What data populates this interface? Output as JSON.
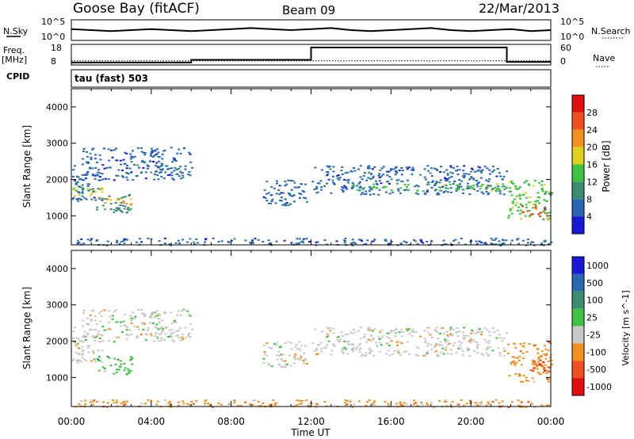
{
  "header": {
    "station": "Goose Bay (fitACF)",
    "beam": "Beam 09",
    "date": "22/Mar/2013"
  },
  "side_labels": {
    "noise_sky": "N.Sky",
    "noise_search": "N.Search",
    "freq_line1": "Freq.",
    "freq_line2": "[MHz]",
    "nave": "Nave",
    "cpid": "CPID",
    "cpid_value": "tau (fast) 503"
  },
  "chart_data": [
    {
      "type": "line",
      "name": "noise-panel",
      "left_ticks": [
        "10^5",
        "10^0"
      ],
      "right_ticks": [
        "10^5",
        "10^0"
      ],
      "x_range": [
        0,
        24
      ],
      "series": [
        {
          "name": "N.Sky",
          "x": [
            0,
            1,
            2,
            3,
            4,
            5,
            6,
            7,
            8,
            9,
            10,
            11,
            12,
            13,
            14,
            15,
            16,
            17,
            18,
            19,
            20,
            21,
            22,
            23,
            24
          ],
          "y": [
            0.45,
            0.5,
            0.55,
            0.5,
            0.45,
            0.5,
            0.55,
            0.5,
            0.45,
            0.4,
            0.45,
            0.5,
            0.45,
            0.4,
            0.5,
            0.55,
            0.5,
            0.45,
            0.4,
            0.5,
            0.55,
            0.5,
            0.45,
            0.55,
            0.5
          ]
        }
      ]
    },
    {
      "type": "line",
      "name": "frequency-panel",
      "left_ticks": [
        "18",
        "8"
      ],
      "right_ticks": [
        "60",
        "0"
      ],
      "x_range": [
        0,
        24
      ],
      "series": [
        {
          "name": "Freq.",
          "x": [
            0,
            6,
            6,
            12,
            12,
            21.8,
            21.8,
            24
          ],
          "y": [
            9.2,
            9.2,
            10.5,
            10.5,
            16.5,
            16.5,
            9.5,
            9.5
          ]
        },
        {
          "name": "Nave",
          "x": [
            0,
            24
          ],
          "y": [
            10,
            10
          ]
        }
      ]
    },
    {
      "type": "heatmap",
      "name": "power-panel",
      "ylabel": "Slant Range [km]",
      "x_range": [
        0,
        24
      ],
      "y_range": [
        200,
        4500
      ],
      "y_ticks": [
        1000,
        2000,
        3000,
        4000
      ],
      "colorbar_label": "Power [dB]",
      "colorbar_ticks": [
        "4",
        "8",
        "12",
        "16",
        "20",
        "24",
        "28"
      ],
      "colors": [
        "#1818d8",
        "#2868b0",
        "#3c8c74",
        "#40c040",
        "#e0d020",
        "#f09020",
        "#f05020",
        "#e01010"
      ],
      "bands": [
        {
          "x": [
            0,
            1.5
          ],
          "y": [
            1400,
            2400
          ],
          "level": 1
        },
        {
          "x": [
            0,
            1.5
          ],
          "y": [
            1500,
            1800
          ],
          "level": 4
        },
        {
          "x": [
            1.2,
            3
          ],
          "y": [
            1100,
            1600
          ],
          "level": 2
        },
        {
          "x": [
            1.5,
            3
          ],
          "y": [
            1300,
            1500
          ],
          "level": 5
        },
        {
          "x": [
            0.5,
            6
          ],
          "y": [
            2000,
            2900
          ],
          "level": 1
        },
        {
          "x": [
            9.5,
            11.8
          ],
          "y": [
            1300,
            2000
          ],
          "level": 1
        },
        {
          "x": [
            12,
            21.8
          ],
          "y": [
            1600,
            2400
          ],
          "level": 1
        },
        {
          "x": [
            14,
            21.8
          ],
          "y": [
            1700,
            1900
          ],
          "level": 3
        },
        {
          "x": [
            21.8,
            24
          ],
          "y": [
            900,
            2000
          ],
          "level": 3
        },
        {
          "x": [
            22.5,
            23.7
          ],
          "y": [
            1000,
            1300
          ],
          "level": 6
        },
        {
          "x": [
            0,
            24
          ],
          "y": [
            200,
            400
          ],
          "level": 1
        }
      ]
    },
    {
      "type": "heatmap",
      "name": "velocity-panel",
      "ylabel": "Slant Range [km]",
      "xlabel": "Time UT",
      "x_range": [
        0,
        24
      ],
      "y_range": [
        200,
        4500
      ],
      "y_ticks": [
        1000,
        2000,
        3000,
        4000
      ],
      "x_ticks": [
        "00:00",
        "04:00",
        "08:00",
        "12:00",
        "16:00",
        "20:00",
        "00:00"
      ],
      "colorbar_label": "Velocity [m s^-1]",
      "colorbar_ticks": [
        "1000",
        "500",
        "100",
        "25",
        "-25",
        "-100",
        "-500",
        "-1000"
      ],
      "colors": [
        "#1818d8",
        "#2868b0",
        "#3c8c74",
        "#40c040",
        "#c8c8c8",
        "#f09020",
        "#f05020",
        "#e01010"
      ],
      "bands": [
        {
          "x": [
            0,
            1.5
          ],
          "y": [
            1400,
            2400
          ],
          "level": 4
        },
        {
          "x": [
            1.2,
            3
          ],
          "y": [
            1100,
            1600
          ],
          "level": 3
        },
        {
          "x": [
            0.5,
            6
          ],
          "y": [
            2000,
            2900
          ],
          "level": 4
        },
        {
          "x": [
            9.5,
            11.8
          ],
          "y": [
            1300,
            2000
          ],
          "level": 4
        },
        {
          "x": [
            12,
            21.8
          ],
          "y": [
            1600,
            2400
          ],
          "level": 4
        },
        {
          "x": [
            21.8,
            24
          ],
          "y": [
            900,
            2000
          ],
          "level": 5
        },
        {
          "x": [
            23,
            24
          ],
          "y": [
            1100,
            1500
          ],
          "level": 6
        },
        {
          "x": [
            0,
            24
          ],
          "y": [
            200,
            400
          ],
          "level": 5
        }
      ]
    }
  ]
}
